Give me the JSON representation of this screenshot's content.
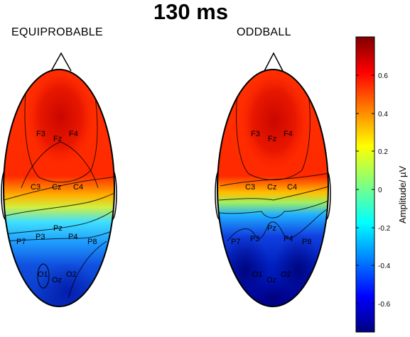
{
  "title": "130 ms",
  "conditions": [
    "EQUIPROBABLE",
    "ODDBALL"
  ],
  "electrodes": [
    "F3",
    "Fz",
    "F4",
    "C3",
    "Cz",
    "C4",
    "P7",
    "P3",
    "Pz",
    "P4",
    "P8",
    "O1",
    "Oz",
    "O2"
  ],
  "colorbar": {
    "label": "Amplitude/ µV",
    "ticks": [
      "0.6",
      "0.4",
      "0.2",
      "0",
      "-0.2",
      "-0.4",
      "-0.6"
    ],
    "colormap": "jet",
    "range": [
      -0.78,
      0.78
    ]
  },
  "colors": {
    "dark_red": "#8b0000",
    "red": "#ff2000",
    "orange": "#ff9000",
    "yellow": "#ffe000",
    "cyan": "#20d0ff",
    "blue": "#1050e0",
    "dark_blue": "#00008b"
  }
}
